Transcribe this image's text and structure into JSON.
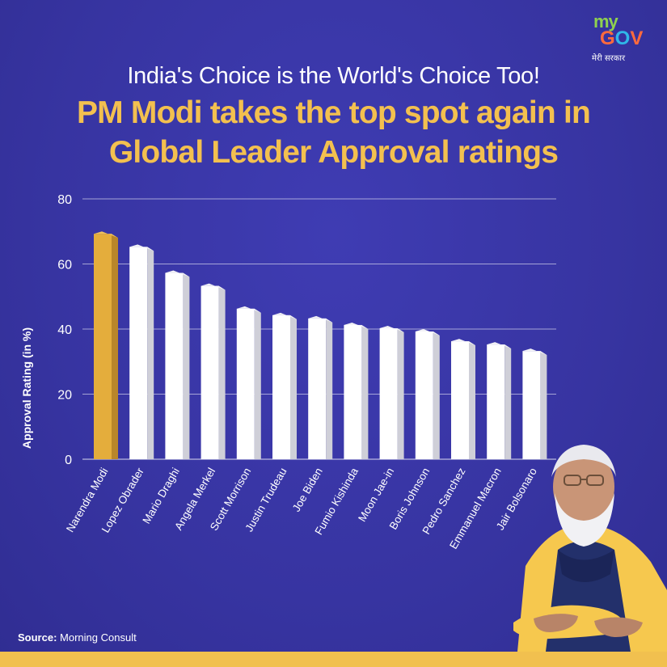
{
  "brand": {
    "logo_my": "my",
    "logo_gov": "GOV",
    "logo_tagline": "मेरी सरकार"
  },
  "header": {
    "headline": "India's Choice is the World's Choice Too!",
    "title_line1": "PM Modi takes the top spot again in",
    "title_line2": "Global Leader Approval ratings"
  },
  "footer": {
    "source_label": "Source:",
    "source_value": "Morning Consult"
  },
  "colors": {
    "background": "#3734a1",
    "highlight_bar": "#e0a93a",
    "bar": "#ffffff",
    "accent": "#f3c04f"
  },
  "chart_data": {
    "type": "bar",
    "title": "",
    "xlabel": "",
    "ylabel": "Approval Rating (in %)",
    "ylim": [
      0,
      80
    ],
    "yticks": [
      0,
      20,
      40,
      60,
      80
    ],
    "grid": true,
    "categories": [
      "Narendra Modi",
      "Lopez Obrader",
      "Mario Draghi",
      "Angela Merkel",
      "Scott Morrison",
      "Justin Trudeau",
      "Joe Biden",
      "Fumio Kishinda",
      "Moon Jae-in",
      "Boris Johnson",
      "Pedro Sanchez",
      "Emmanuel Macron",
      "Jair Bolsonaro"
    ],
    "values": [
      70,
      66,
      58,
      54,
      47,
      45,
      44,
      42,
      41,
      40,
      37,
      36,
      34
    ],
    "highlight_index": 0
  }
}
